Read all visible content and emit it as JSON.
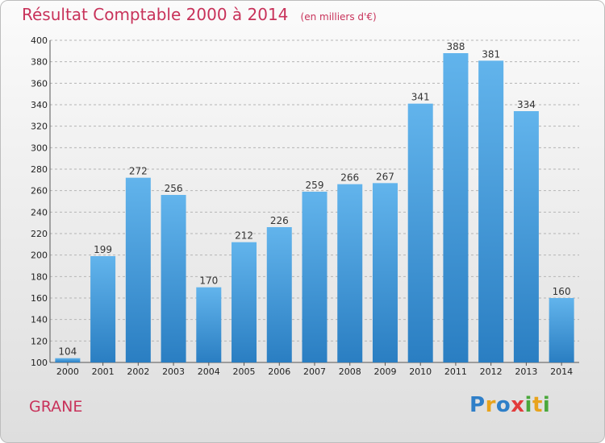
{
  "header": {
    "title": "Résultat Comptable 2000 à 2014",
    "subtitle": "(en milliers d'€)"
  },
  "footer": {
    "label": "GRANE"
  },
  "logo": {
    "text": "Proxiti",
    "letters": [
      {
        "ch": "P",
        "color": "#2f7fc8"
      },
      {
        "ch": "r",
        "color": "#e8a31c"
      },
      {
        "ch": "o",
        "color": "#2f7fc8"
      },
      {
        "ch": "x",
        "color": "#e23c3c"
      },
      {
        "ch": "i",
        "color": "#4aa83c"
      },
      {
        "ch": "t",
        "color": "#e8a31c"
      },
      {
        "ch": "i",
        "color": "#4aa83c"
      }
    ]
  },
  "colors": {
    "accent": "#c8325a",
    "bar_top": "#62b4ec",
    "bar_bottom": "#2a7ec2",
    "grid": "#b5b5b5"
  },
  "chart_data": {
    "type": "bar",
    "title": "Résultat Comptable 2000 à 2014",
    "subtitle": "(en milliers d'€)",
    "categories": [
      "2000",
      "2001",
      "2002",
      "2003",
      "2004",
      "2005",
      "2006",
      "2007",
      "2008",
      "2009",
      "2010",
      "2011",
      "2012",
      "2013",
      "2014"
    ],
    "values": [
      104,
      199,
      272,
      256,
      170,
      212,
      226,
      259,
      266,
      267,
      341,
      388,
      381,
      334,
      160
    ],
    "ylim": [
      100,
      400
    ],
    "yticks": [
      100,
      120,
      140,
      160,
      180,
      200,
      220,
      240,
      260,
      280,
      300,
      320,
      340,
      360,
      380,
      400
    ],
    "grid": true,
    "data_labels": true
  }
}
